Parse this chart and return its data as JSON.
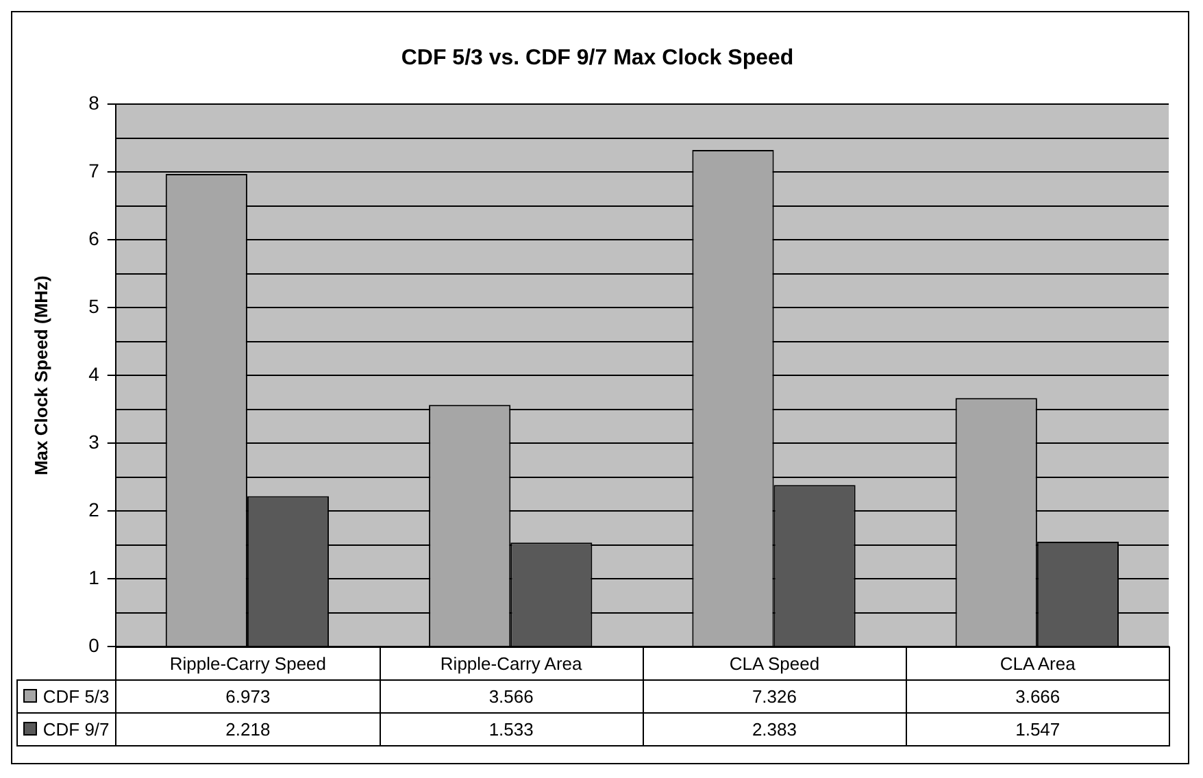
{
  "chart_data": {
    "type": "bar",
    "title": "CDF 5/3 vs. CDF 9/7 Max Clock Speed",
    "ylabel": "Max Clock Speed (MHz)",
    "categories": [
      "Ripple-Carry Speed",
      "Ripple-Carry Area",
      "CLA Speed",
      "CLA Area"
    ],
    "series": [
      {
        "name": "CDF 5/3",
        "color": "#a6a6a6",
        "values": [
          6.973,
          3.566,
          7.326,
          3.666
        ]
      },
      {
        "name": "CDF 9/7",
        "color": "#595959",
        "values": [
          2.218,
          1.533,
          2.383,
          1.547
        ]
      }
    ],
    "ylim": [
      0,
      8
    ],
    "yticks": [
      0,
      {
        "value": 0.5,
        "label": null
      },
      1,
      {
        "value": 1.5,
        "label": null
      },
      2,
      {
        "value": 2.5,
        "label": null
      },
      3,
      {
        "value": 3.5,
        "label": null
      },
      4,
      {
        "value": 4.5,
        "label": null
      },
      5,
      {
        "value": 5.5,
        "label": null
      },
      6,
      {
        "value": 6.5,
        "label": null
      },
      7,
      {
        "value": 7.5,
        "label": null
      },
      8
    ],
    "grid": "y",
    "legend": "bottom left",
    "data_labels": true
  }
}
